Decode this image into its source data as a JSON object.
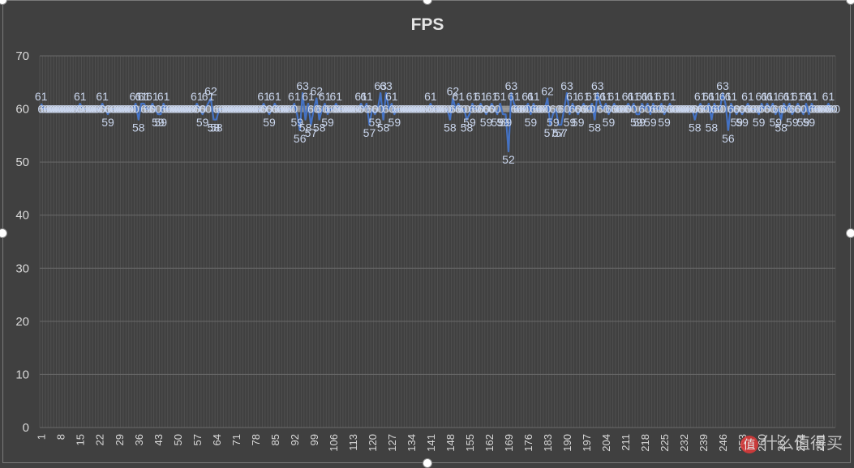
{
  "chart_data": {
    "type": "line",
    "title": "FPS",
    "xlabel": "",
    "ylabel": "",
    "ylim": [
      0,
      70
    ],
    "yticks": [
      0,
      10,
      20,
      30,
      40,
      50,
      60,
      70
    ],
    "x_start": 1,
    "x_end": 280,
    "xtick_step": 7,
    "grid": true,
    "legend": "none",
    "series": [
      {
        "color": "#4472c4",
        "label_color": "#c9d5ec",
        "values": [
          61,
          60,
          60,
          60,
          60,
          60,
          60,
          60,
          60,
          60,
          60,
          60,
          60,
          60,
          61,
          60,
          60,
          60,
          60,
          60,
          60,
          60,
          61,
          60,
          59,
          60,
          60,
          60,
          60,
          60,
          60,
          60,
          60,
          60,
          61,
          58,
          61,
          61,
          60,
          60,
          61,
          60,
          59,
          59,
          61,
          60,
          60,
          60,
          60,
          60,
          60,
          60,
          60,
          60,
          60,
          60,
          61,
          60,
          59,
          60,
          61,
          62,
          58,
          58,
          60,
          60,
          60,
          60,
          60,
          60,
          60,
          60,
          60,
          60,
          60,
          60,
          60,
          60,
          60,
          60,
          61,
          60,
          59,
          60,
          61,
          60,
          60,
          60,
          60,
          60,
          60,
          61,
          59,
          56,
          63,
          58,
          61,
          57,
          60,
          62,
          58,
          60,
          61,
          59,
          60,
          60,
          61,
          60,
          60,
          60,
          60,
          60,
          60,
          60,
          60,
          61,
          60,
          61,
          57,
          60,
          59,
          60,
          63,
          58,
          63,
          60,
          61,
          59,
          60,
          60,
          60,
          60,
          60,
          60,
          60,
          60,
          60,
          60,
          60,
          60,
          61,
          60,
          60,
          60,
          60,
          60,
          60,
          58,
          62,
          60,
          61,
          60,
          60,
          58,
          59,
          61,
          60,
          60,
          61,
          60,
          59,
          60,
          61,
          60,
          59,
          61,
          59,
          59,
          52,
          63,
          61,
          60,
          60,
          60,
          60,
          61,
          59,
          61,
          60,
          60,
          60,
          60,
          62,
          57,
          59,
          60,
          57,
          57,
          60,
          63,
          59,
          61,
          60,
          59,
          60,
          61,
          60,
          60,
          61,
          58,
          63,
          61,
          60,
          61,
          59,
          60,
          61,
          60,
          60,
          60,
          60,
          61,
          60,
          61,
          59,
          59,
          61,
          60,
          61,
          59,
          61,
          60,
          60,
          61,
          59,
          60,
          61,
          60,
          60,
          60,
          60,
          60,
          60,
          60,
          60,
          58,
          60,
          61,
          60,
          60,
          61,
          58,
          61,
          60,
          60,
          63,
          61,
          56,
          61,
          60,
          59,
          60,
          59,
          60,
          61,
          60,
          60,
          60,
          59,
          61,
          60,
          61,
          60,
          61,
          59,
          60,
          58,
          61,
          60,
          61,
          59,
          60,
          61,
          60,
          59,
          61,
          59,
          61,
          60,
          60,
          60,
          60,
          60,
          61,
          60,
          60
        ]
      }
    ]
  },
  "watermark": {
    "icon_glyph": "值",
    "text": "什么值得买"
  }
}
